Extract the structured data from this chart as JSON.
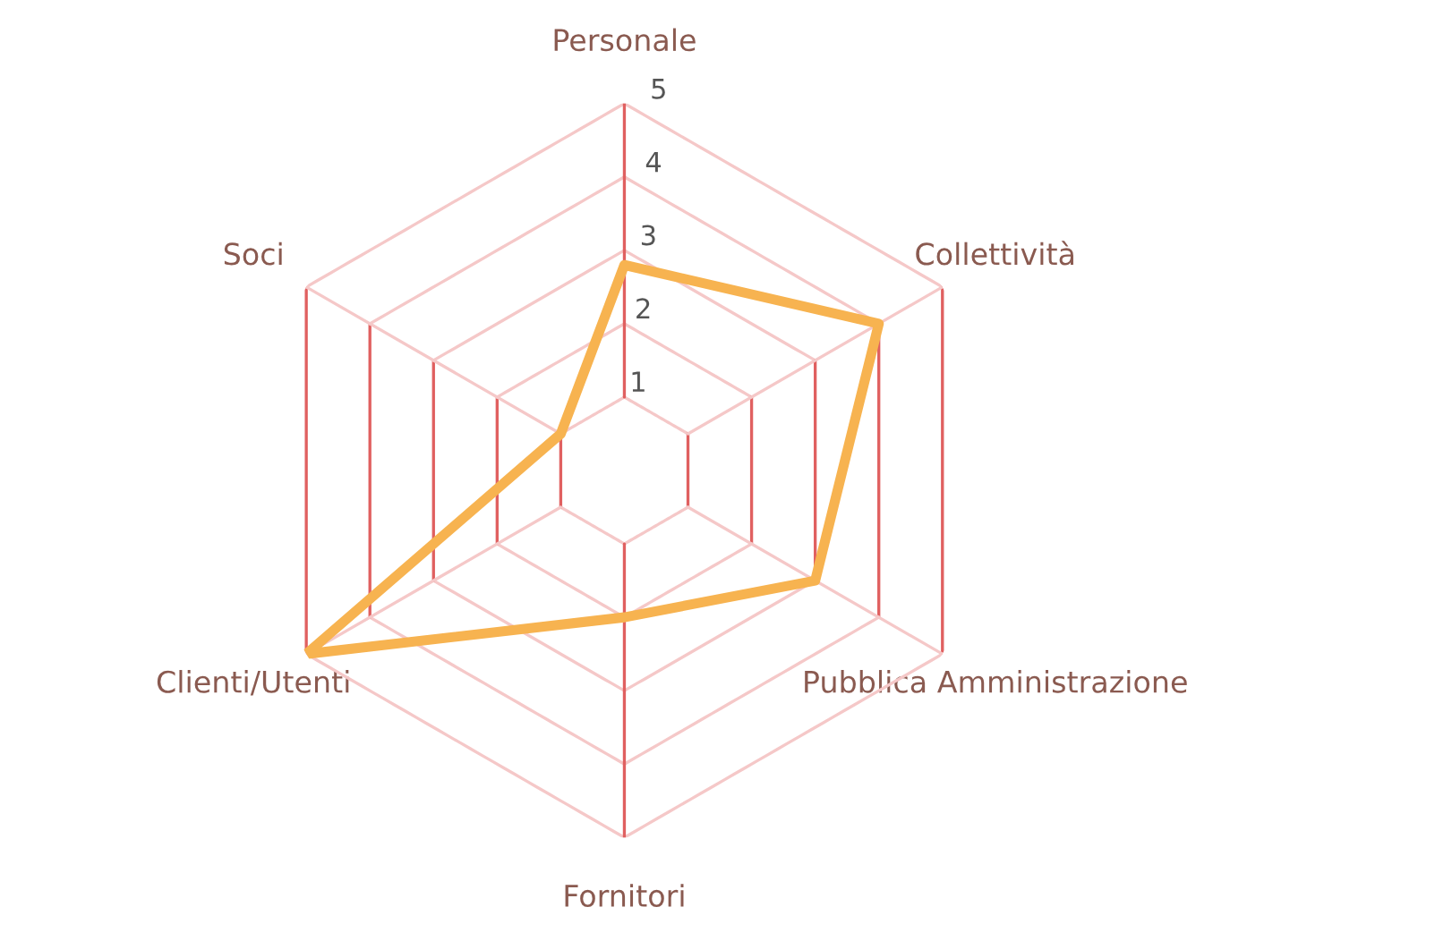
{
  "chart_data": {
    "type": "radar",
    "categories": [
      "Personale",
      "Collettività",
      "Pubblica Amministrazione",
      "Fornitori",
      "Clienti/Utenti",
      "Soci"
    ],
    "series": [
      {
        "color": "#f7b350",
        "values": [
          2.8,
          4,
          3,
          2,
          5,
          1
        ]
      }
    ],
    "ylim": [
      0,
      5
    ],
    "yticks": [
      1,
      2,
      3,
      4,
      5
    ],
    "grid": true
  }
}
